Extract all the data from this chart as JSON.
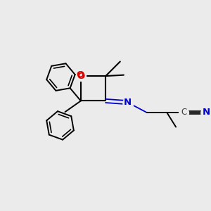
{
  "background_color": "#ebebeb",
  "bond_color": "#000000",
  "o_color": "#dd0000",
  "n_color": "#0000cc",
  "c_color": "#404040",
  "figsize": [
    3.0,
    3.0
  ],
  "dpi": 100,
  "xlim": [
    0,
    10
  ],
  "ylim": [
    0,
    10
  ]
}
